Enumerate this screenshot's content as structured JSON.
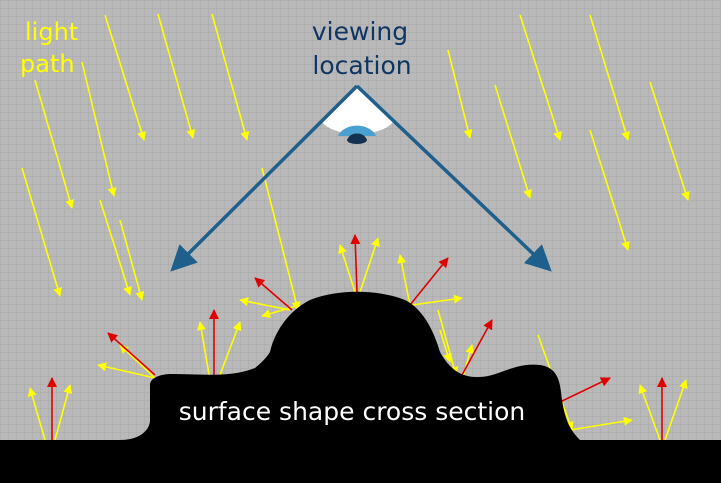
{
  "labels": {
    "light_line1": "light",
    "light_line2": "path",
    "view_line1": "viewing",
    "view_line2": "location",
    "surface": "surface shape cross section"
  },
  "colors": {
    "background": "#b9b9b9",
    "grid": "#a6a6a6",
    "light": "#ffff00",
    "normal": "#e00000",
    "view": "#1f5f8c",
    "view_label": "#0f3562",
    "surface": "#000000",
    "surface_text": "#ffffff"
  },
  "icons": {
    "eye": "eye-icon"
  }
}
